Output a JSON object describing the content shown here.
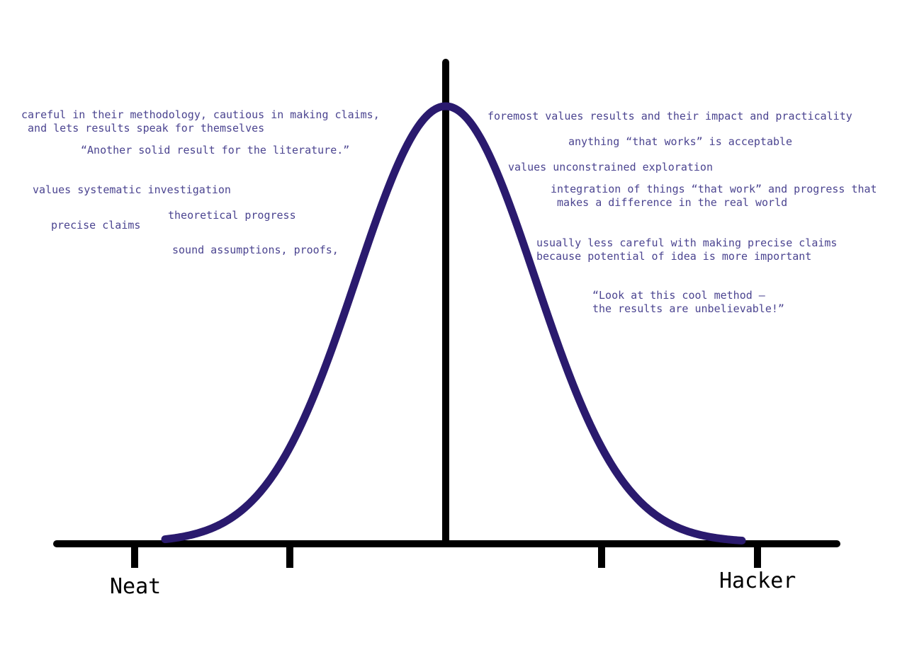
{
  "axis": {
    "left_label": "Neat",
    "right_label": "Hacker"
  },
  "neat_notes": {
    "methodology": "careful in their methodology, cautious in making claims,\n and lets results speak for themselves",
    "quote": "“Another solid result for the literature.”",
    "systematic": "values systematic investigation",
    "theoretical": "theoretical progress",
    "precise": "precise claims",
    "sound": "sound assumptions, proofs,"
  },
  "hacker_notes": {
    "foremost": "foremost values results and their impact and practicality",
    "anything": "anything “that works” is acceptable",
    "exploration": "values unconstrained exploration",
    "integration": "integration of things “that work” and progress that\n makes a difference in the real world",
    "less_careful": "usually less careful with making precise claims\nbecause potential of idea is more important",
    "quote": "“Look at this cool method —\nthe results are unbelievable!”"
  },
  "colors": {
    "curve": "#2a1a6e",
    "axis": "#000000",
    "note_text": "#4b4490"
  }
}
